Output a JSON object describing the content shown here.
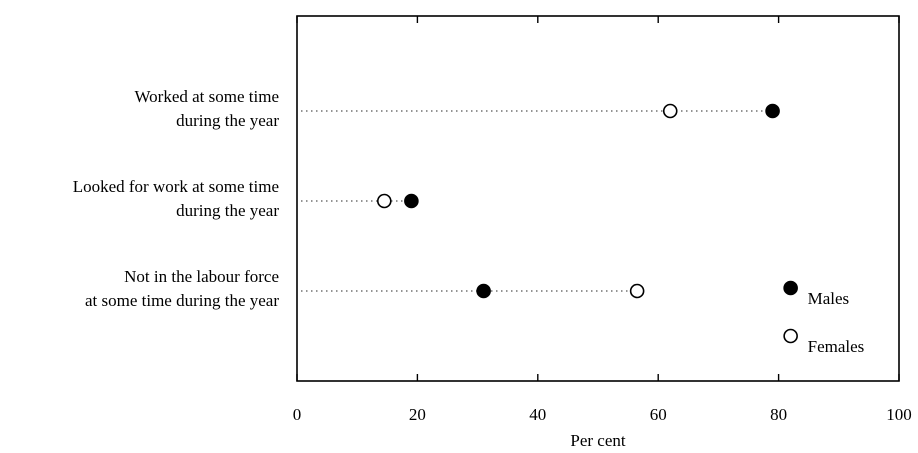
{
  "chart_data": {
    "type": "scatter",
    "title": "",
    "xlabel": "Per cent",
    "ylabel": "",
    "xlim": [
      0,
      100
    ],
    "xticks": [
      0,
      20,
      40,
      60,
      80,
      100
    ],
    "legend_position": "bottom-right",
    "categories": [
      [
        "Worked at some time",
        "during the year"
      ],
      [
        "Looked for work at some time",
        "during the year"
      ],
      [
        "Not in the labour force",
        "at some time during the year"
      ]
    ],
    "series": [
      {
        "name": "Males",
        "marker": "filled-circle",
        "values": [
          79,
          19,
          31
        ]
      },
      {
        "name": "Females",
        "marker": "open-circle",
        "values": [
          62,
          14.5,
          56.5
        ]
      }
    ],
    "colors": {
      "ink": "#000000",
      "dots": "#555555"
    }
  }
}
